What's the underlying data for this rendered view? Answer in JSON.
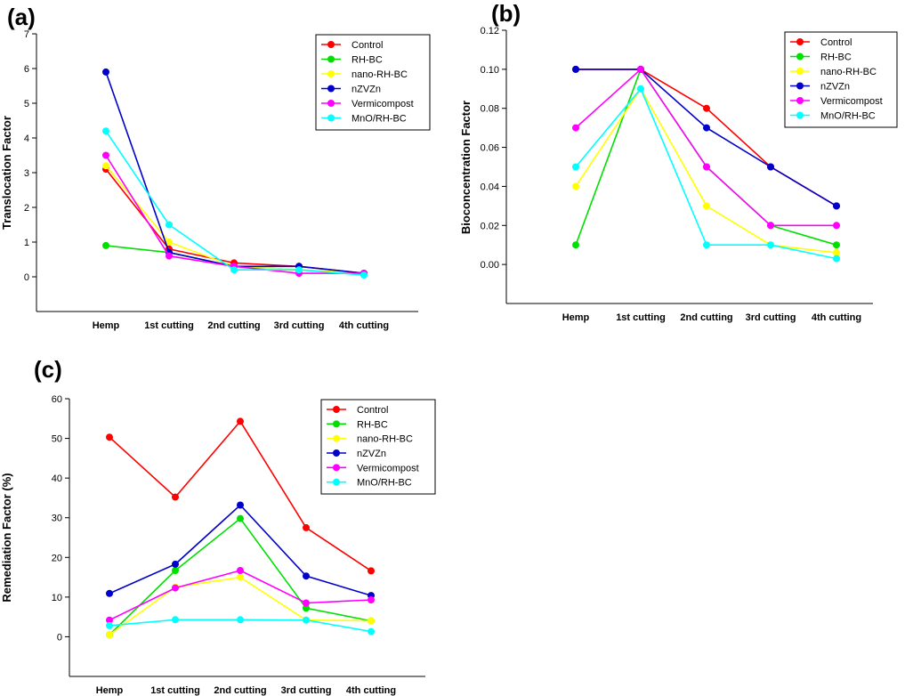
{
  "chart_data": [
    {
      "type": "line",
      "panel_label": "(a)",
      "title": "",
      "xlabel": "",
      "ylabel": "Translocation Factor",
      "categories": [
        "Hemp",
        "1st cutting",
        "2nd cutting",
        "3rd cutting",
        "4th cutting"
      ],
      "ylim": [
        -1,
        7
      ],
      "yticks": [
        0,
        1,
        2,
        3,
        4,
        5,
        6,
        7
      ],
      "ytick_labels": [
        "0",
        "1",
        "2",
        "3",
        "4",
        "5",
        "6",
        "7"
      ],
      "legend_position": "top-right",
      "series": [
        {
          "name": "Control",
          "color": "#ff0000",
          "values": [
            3.1,
            0.8,
            0.4,
            0.3,
            0.1
          ]
        },
        {
          "name": "RH-BC",
          "color": "#00e000",
          "values": [
            0.9,
            0.7,
            0.3,
            0.2,
            0.1
          ]
        },
        {
          "name": "nano-RH-BC",
          "color": "#ffff00",
          "values": [
            3.2,
            1.0,
            0.3,
            0.2,
            0.1
          ]
        },
        {
          "name": "nZVZn",
          "color": "#0000c8",
          "values": [
            5.9,
            0.7,
            0.3,
            0.3,
            0.1
          ]
        },
        {
          "name": "Vermicompost",
          "color": "#ff00ff",
          "values": [
            3.5,
            0.6,
            0.3,
            0.1,
            0.1
          ]
        },
        {
          "name": "MnO/RH-BC",
          "color": "#00ffff",
          "values": [
            4.2,
            1.5,
            0.2,
            0.2,
            0.05
          ]
        }
      ]
    },
    {
      "type": "line",
      "panel_label": "(b)",
      "title": "",
      "xlabel": "",
      "ylabel": "Bioconcentration Factor",
      "categories": [
        "Hemp",
        "1st cutting",
        "2nd cutting",
        "3rd cutting",
        "4th cutting"
      ],
      "ylim": [
        -0.02,
        0.12
      ],
      "yticks": [
        0,
        0.02,
        0.04,
        0.06,
        0.08,
        0.1,
        0.12
      ],
      "ytick_labels": [
        "0.00",
        "0.02",
        "0.04",
        "0.06",
        "0.08",
        "0.10",
        "0.12"
      ],
      "legend_position": "top-right",
      "series": [
        {
          "name": "Control",
          "color": "#ff0000",
          "values": [
            0.1,
            0.1,
            0.08,
            0.05,
            0.03
          ]
        },
        {
          "name": "RH-BC",
          "color": "#00e000",
          "values": [
            0.01,
            0.1,
            0.05,
            0.02,
            0.01
          ]
        },
        {
          "name": "nano-RH-BC",
          "color": "#ffff00",
          "values": [
            0.04,
            0.09,
            0.03,
            0.01,
            0.006
          ]
        },
        {
          "name": "nZVZn",
          "color": "#0000c8",
          "values": [
            0.1,
            0.1,
            0.07,
            0.05,
            0.03
          ]
        },
        {
          "name": "Vermicompost",
          "color": "#ff00ff",
          "values": [
            0.07,
            0.1,
            0.05,
            0.02,
            0.02
          ]
        },
        {
          "name": "MnO/RH-BC",
          "color": "#00ffff",
          "values": [
            0.05,
            0.09,
            0.01,
            0.01,
            0.003
          ]
        }
      ]
    },
    {
      "type": "line",
      "panel_label": "(c)",
      "title": "",
      "xlabel": "",
      "ylabel": "Remediation Factor (%)",
      "categories": [
        "Hemp",
        "1st cutting",
        "2nd cutting",
        "3rd cutting",
        "4th cutting"
      ],
      "ylim": [
        -10,
        60
      ],
      "yticks": [
        0,
        10,
        20,
        30,
        40,
        50,
        60
      ],
      "ytick_labels": [
        "0",
        "10",
        "20",
        "30",
        "40",
        "50",
        "60"
      ],
      "legend_position": "top-right",
      "series": [
        {
          "name": "Control",
          "color": "#ff0000",
          "values": [
            50.3,
            35.2,
            54.3,
            27.5,
            16.6
          ]
        },
        {
          "name": "RH-BC",
          "color": "#00e000",
          "values": [
            0.5,
            16.7,
            29.8,
            7.2,
            4.0
          ]
        },
        {
          "name": "nano-RH-BC",
          "color": "#ffff00",
          "values": [
            0.5,
            12.5,
            15.0,
            4.2,
            4.0
          ]
        },
        {
          "name": "nZVZn",
          "color": "#0000c8",
          "values": [
            10.9,
            18.3,
            33.2,
            15.3,
            10.4
          ]
        },
        {
          "name": "Vermicompost",
          "color": "#ff00ff",
          "values": [
            4.2,
            12.3,
            16.7,
            8.5,
            9.3
          ]
        },
        {
          "name": "MnO/RH-BC",
          "color": "#00ffff",
          "values": [
            2.8,
            4.3,
            4.3,
            4.2,
            1.3
          ]
        }
      ]
    }
  ]
}
